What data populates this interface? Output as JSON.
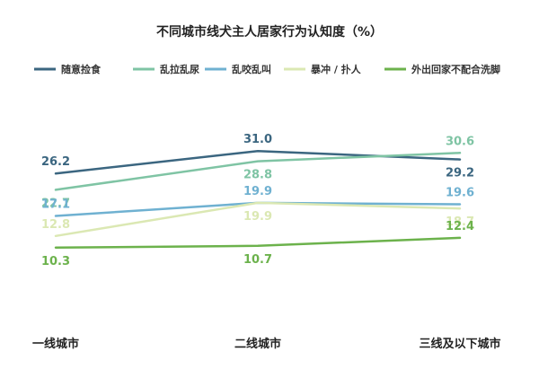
{
  "chart_data": {
    "type": "line",
    "title": "不同城市线犬主人居家行为认知度（%）",
    "categories": [
      "一线城市",
      "二线城市",
      "三线及以下城市"
    ],
    "ylim": [
      0,
      40
    ],
    "grid": false,
    "legend_position": "top",
    "series": [
      {
        "name": "随意捡食",
        "color": "#3b6680",
        "values": [
          26.2,
          31.0,
          29.2
        ],
        "labels": [
          "26.2",
          "31.0",
          "29.2"
        ],
        "label_pos": [
          "above",
          "above",
          "below"
        ]
      },
      {
        "name": "乱拉乱尿",
        "color": "#7fc4a4",
        "values": [
          22.7,
          28.8,
          30.6
        ],
        "labels": [
          "22.7",
          "28.8",
          "30.6"
        ],
        "label_pos": [
          "below",
          "below",
          "above"
        ]
      },
      {
        "name": "乱咬乱叫",
        "color": "#6fb1d1",
        "values": [
          17.1,
          19.9,
          19.6
        ],
        "labels": [
          "17.1",
          "19.9",
          "19.6"
        ],
        "label_pos": [
          "above",
          "above",
          "above"
        ]
      },
      {
        "name": "暴冲 / 扑人",
        "color": "#dbe8b3",
        "values": [
          12.8,
          19.9,
          18.7
        ],
        "labels": [
          "12.8",
          "19.9",
          "18.7"
        ],
        "label_pos": [
          "above",
          "below",
          "below"
        ]
      },
      {
        "name": "外出回家不配合洗脚",
        "color": "#6cb24c",
        "values": [
          10.3,
          10.7,
          12.4
        ],
        "labels": [
          "10.3",
          "10.7",
          "12.4"
        ],
        "label_pos": [
          "below",
          "below",
          "above"
        ]
      }
    ]
  }
}
